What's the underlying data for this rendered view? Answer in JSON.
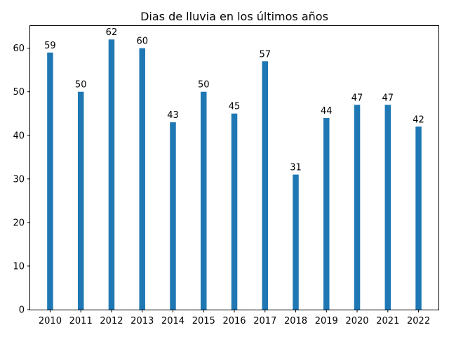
{
  "chart_data": {
    "type": "bar",
    "title": "Dias de lluvia en los últimos años",
    "xlabel": "",
    "ylabel": "",
    "categories": [
      "2010",
      "2011",
      "2012",
      "2013",
      "2014",
      "2015",
      "2016",
      "2017",
      "2018",
      "2019",
      "2020",
      "2021",
      "2022"
    ],
    "values": [
      59,
      50,
      62,
      60,
      43,
      50,
      45,
      57,
      31,
      44,
      47,
      47,
      42
    ],
    "data_labels": [
      "59",
      "50",
      "62",
      "60",
      "43",
      "50",
      "45",
      "57",
      "31",
      "44",
      "47",
      "47",
      "42"
    ],
    "yticks": [
      "0",
      "10",
      "20",
      "30",
      "40",
      "50",
      "60"
    ],
    "ylim": [
      0,
      65.1
    ],
    "bar_color": "#1f77b4",
    "grid": false,
    "legend": "none"
  }
}
